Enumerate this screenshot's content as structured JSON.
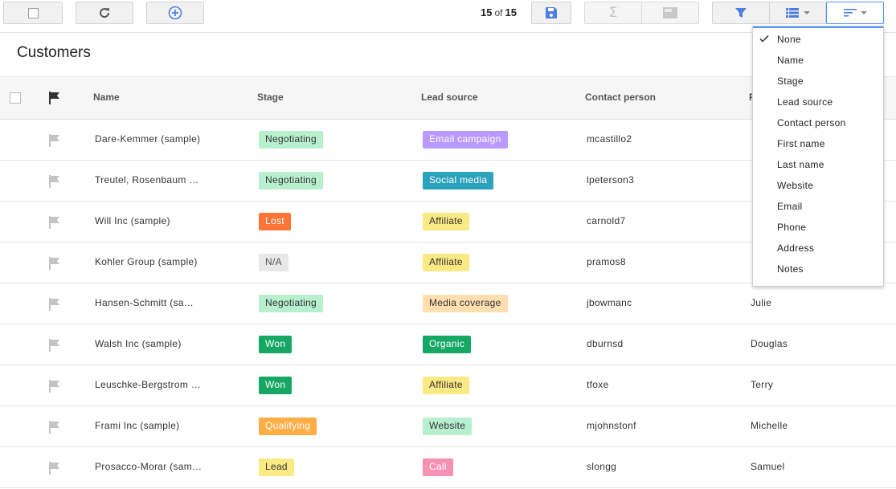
{
  "toolbar": {
    "count_current": "15",
    "count_of": "of",
    "count_total": "15"
  },
  "page_title": "Customers",
  "table": {
    "headers": {
      "name": "Name",
      "stage": "Stage",
      "lead_source": "Lead source",
      "contact_person": "Contact person",
      "first_name": "F"
    },
    "rows": [
      {
        "name": "Dare-Kemmer (sample)",
        "stage": "Negotiating",
        "lead_source": "Email campaign",
        "contact": "mcastillo2",
        "first": ""
      },
      {
        "name": "Treutel, Rosenbaum …",
        "stage": "Negotiating",
        "lead_source": "Social media",
        "contact": "lpeterson3",
        "first": ""
      },
      {
        "name": "Will Inc (sample)",
        "stage": "Lost",
        "lead_source": "Affiliate",
        "contact": "carnold7",
        "first": ""
      },
      {
        "name": "Kohler Group (sample)",
        "stage": "N/A",
        "lead_source": "Affiliate",
        "contact": "pramos8",
        "first": ""
      },
      {
        "name": "Hansen-Schmitt (sa…",
        "stage": "Negotiating",
        "lead_source": "Media coverage",
        "contact": "jbowmanc",
        "first": "Julie"
      },
      {
        "name": "Walsh Inc (sample)",
        "stage": "Won",
        "lead_source": "Organic",
        "contact": "dburnsd",
        "first": "Douglas"
      },
      {
        "name": "Leuschke-Bergstrom …",
        "stage": "Won",
        "lead_source": "Affiliate",
        "contact": "tfoxe",
        "first": "Terry"
      },
      {
        "name": "Frami Inc (sample)",
        "stage": "Qualifying",
        "lead_source": "Website",
        "contact": "mjohnstonf",
        "first": "Michelle"
      },
      {
        "name": "Prosacco-Morar (sam…",
        "stage": "Lead",
        "lead_source": "Call",
        "contact": "slongg",
        "first": "Samuel"
      }
    ]
  },
  "stage_colors": {
    "Negotiating": {
      "bg": "#b7efcf",
      "fg": "#333333"
    },
    "Lost": {
      "bg": "#ff7537",
      "fg": "#ffffff"
    },
    "N/A": {
      "bg": "#e8e8e8",
      "fg": "#555555"
    },
    "Won": {
      "bg": "#16a765",
      "fg": "#ffffff"
    },
    "Qualifying": {
      "bg": "#ffad46",
      "fg": "#ffffff"
    },
    "Lead": {
      "bg": "#fbe983",
      "fg": "#333333"
    }
  },
  "source_colors": {
    "Email campaign": {
      "bg": "#b99aff",
      "fg": "#ffffff"
    },
    "Social media": {
      "bg": "#2da2bb",
      "fg": "#ffffff"
    },
    "Affiliate": {
      "bg": "#fbe983",
      "fg": "#333333"
    },
    "Media coverage": {
      "bg": "#ffdeb0",
      "fg": "#333333"
    },
    "Organic": {
      "bg": "#16a765",
      "fg": "#ffffff"
    },
    "Website": {
      "bg": "#b7efcf",
      "fg": "#333333"
    },
    "Call": {
      "bg": "#f691b2",
      "fg": "#ffffff"
    }
  },
  "sort_menu": {
    "selected": "None",
    "items": [
      "None",
      "Name",
      "Stage",
      "Lead source",
      "Contact person",
      "First name",
      "Last name",
      "Website",
      "Email",
      "Phone",
      "Address",
      "Notes"
    ]
  },
  "icons": {
    "select_all": "checkbox-icon",
    "refresh": "refresh-icon",
    "add": "add-circle-icon",
    "save": "save-icon",
    "sum": "sigma-icon",
    "summary": "panel-icon",
    "filter": "filter-icon",
    "view": "list-view-icon",
    "sort": "sort-icon"
  }
}
